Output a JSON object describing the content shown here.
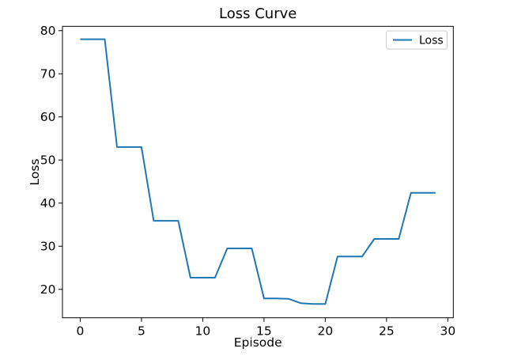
{
  "figure": {
    "background_color": "#ffffff",
    "text_color": "#000000"
  },
  "chart_data": {
    "type": "line",
    "title": "Loss Curve",
    "xlabel": "Episode",
    "ylabel": "Loss",
    "x": [
      0,
      1,
      2,
      3,
      4,
      5,
      6,
      7,
      8,
      9,
      10,
      11,
      12,
      13,
      14,
      15,
      16,
      17,
      18,
      19,
      20,
      21,
      22,
      23,
      24,
      25,
      26,
      27,
      28,
      29
    ],
    "series": [
      {
        "name": "Loss",
        "color": "#1f77b4",
        "values": [
          78,
          78,
          78,
          53,
          53,
          53,
          35.9,
          35.9,
          35.9,
          22.7,
          22.7,
          22.7,
          29.5,
          29.5,
          29.5,
          17.9,
          17.9,
          17.8,
          16.8,
          16.6,
          16.6,
          27.6,
          27.6,
          27.6,
          31.7,
          31.7,
          31.7,
          42.4,
          42.4,
          42.4
        ]
      }
    ],
    "xlim": [
      -1.45,
      30.45
    ],
    "ylim": [
      13.4,
      81.0
    ],
    "xticks": [
      0,
      5,
      10,
      15,
      20,
      25,
      30
    ],
    "yticks": [
      20,
      30,
      40,
      50,
      60,
      70,
      80
    ],
    "grid": false,
    "legend": {
      "label": "Loss",
      "position": "upper right"
    },
    "axis_color": "#000000",
    "legend_border_color": "#cccccc"
  }
}
